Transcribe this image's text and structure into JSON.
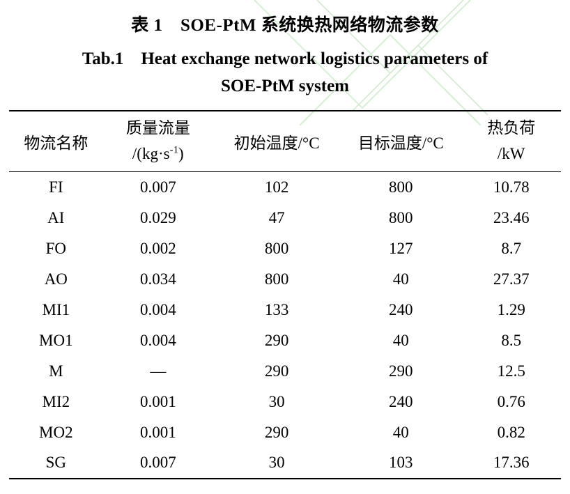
{
  "titles": {
    "zh": "表 1　SOE-PtM 系统换热网络物流参数",
    "en_line1": "Tab.1　Heat exchange network logistics parameters of",
    "en_line2": "SOE-PtM system"
  },
  "decor": {
    "watermark_line_color": "#d8ecd8"
  },
  "table": {
    "headers": {
      "stream_name": "物流名称",
      "mass_flow_line1": "质量流量",
      "mass_flow_unit_pre": "/(kg·s",
      "mass_flow_unit_sup": "-1",
      "mass_flow_unit_post": ")",
      "initial_temp": "初始温度/°C",
      "target_temp": "目标温度/°C",
      "heat_load_line1": "热负荷",
      "heat_load_line2": "/kW"
    },
    "rows": [
      [
        "FI",
        "0.007",
        "102",
        "800",
        "10.78"
      ],
      [
        "AI",
        "0.029",
        "47",
        "800",
        "23.46"
      ],
      [
        "FO",
        "0.002",
        "800",
        "127",
        "8.7"
      ],
      [
        "AO",
        "0.034",
        "800",
        "40",
        "27.37"
      ],
      [
        "MI1",
        "0.004",
        "133",
        "240",
        "1.29"
      ],
      [
        "MO1",
        "0.004",
        "290",
        "40",
        "8.5"
      ],
      [
        "M",
        "—",
        "290",
        "290",
        "12.5"
      ],
      [
        "MI2",
        "0.001",
        "30",
        "240",
        "0.76"
      ],
      [
        "MO2",
        "0.001",
        "290",
        "40",
        "0.82"
      ],
      [
        "SG",
        "0.007",
        "30",
        "103",
        "17.36"
      ]
    ]
  }
}
